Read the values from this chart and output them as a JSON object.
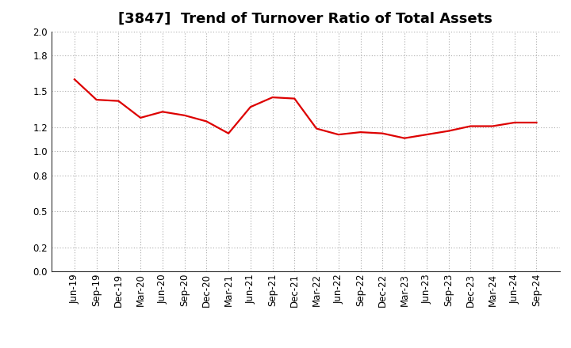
{
  "title": "[3847]  Trend of Turnover Ratio of Total Assets",
  "x_labels": [
    "Jun-19",
    "Sep-19",
    "Dec-19",
    "Mar-20",
    "Jun-20",
    "Sep-20",
    "Dec-20",
    "Mar-21",
    "Jun-21",
    "Sep-21",
    "Dec-21",
    "Mar-22",
    "Jun-22",
    "Sep-22",
    "Dec-22",
    "Mar-23",
    "Jun-23",
    "Sep-23",
    "Dec-23",
    "Mar-24",
    "Jun-24",
    "Sep-24"
  ],
  "y_values": [
    1.6,
    1.43,
    1.42,
    1.28,
    1.33,
    1.3,
    1.25,
    1.15,
    1.37,
    1.45,
    1.44,
    1.19,
    1.14,
    1.16,
    1.15,
    1.11,
    1.14,
    1.17,
    1.21,
    1.21,
    1.24,
    1.24
  ],
  "line_color": "#dd0000",
  "line_width": 1.6,
  "ylim": [
    0.0,
    2.0
  ],
  "yticks": [
    0.0,
    0.2,
    0.5,
    0.8,
    1.0,
    1.2,
    1.5,
    1.8,
    2.0
  ],
  "grid_color": "#aaaaaa",
  "background_color": "#ffffff",
  "title_fontsize": 13,
  "tick_fontsize": 8.5
}
